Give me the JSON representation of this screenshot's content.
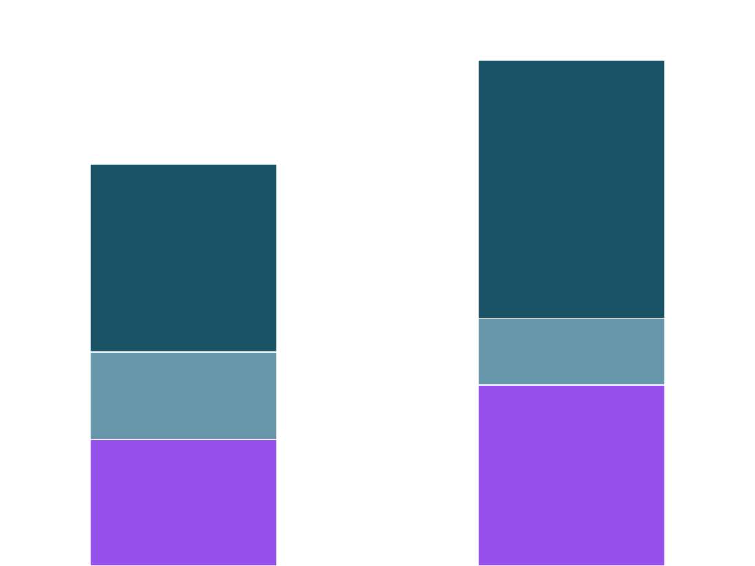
{
  "chart_data": {
    "type": "bar",
    "stacked": true,
    "title": "",
    "xlabel": "",
    "ylabel": "",
    "categories": [
      "",
      ""
    ],
    "ylim": [
      0,
      822
    ],
    "grid": false,
    "axes_visible": false,
    "legend": "none",
    "series": [
      {
        "values": [
          184,
          263
        ],
        "color": "#9650EB"
      },
      {
        "values": [
          127,
          96
        ],
        "color": "#6896AA"
      },
      {
        "values": [
          273,
          376
        ],
        "color": "#1B5366"
      }
    ],
    "segment_separator_color": "#FFFFFF"
  }
}
